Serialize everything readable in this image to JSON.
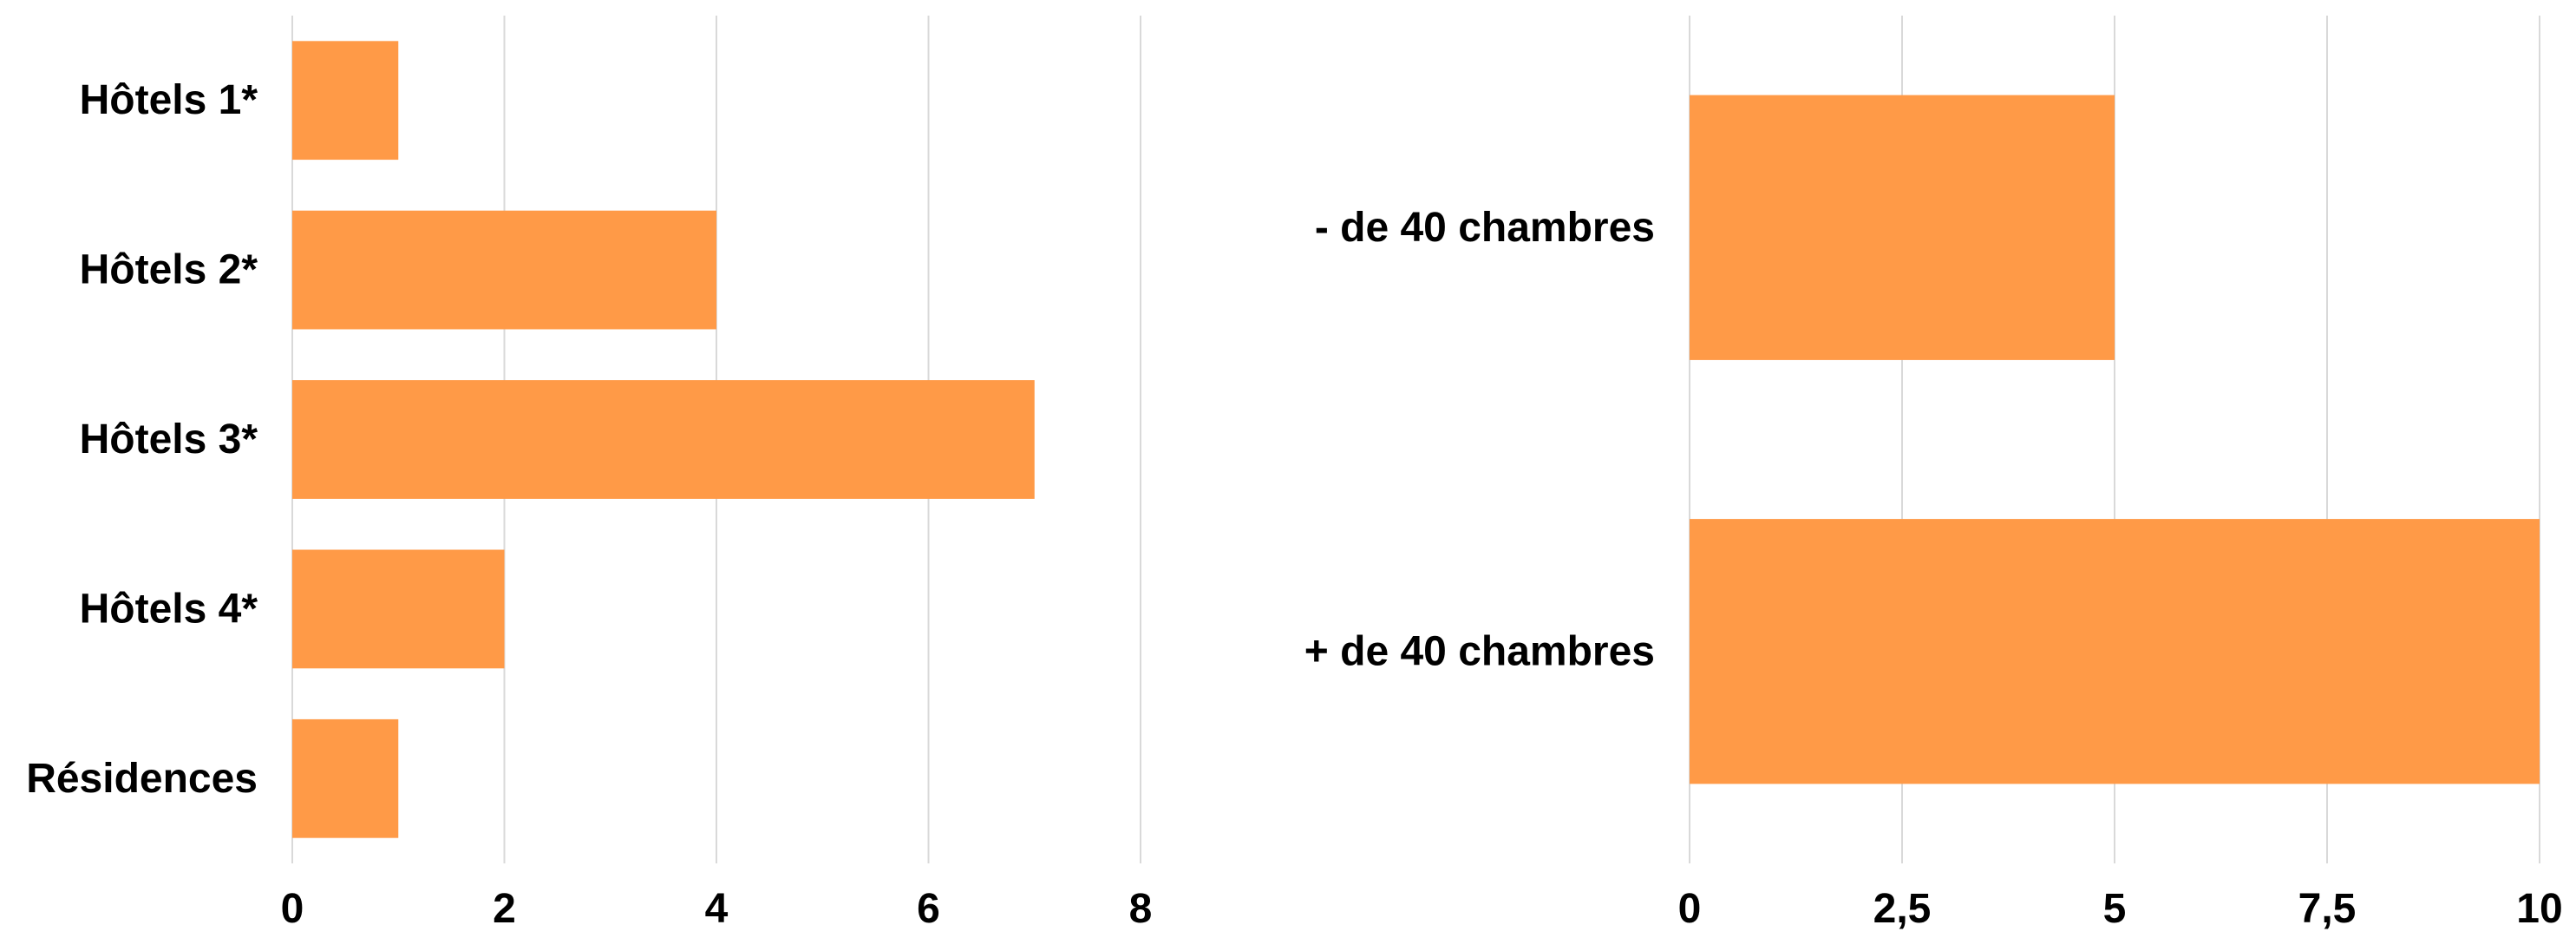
{
  "colors": {
    "bar": "#FF9A47",
    "grid": "#D9D9D9",
    "text": "#000000",
    "background": "#FFFFFF"
  },
  "chart_data": [
    {
      "type": "bar",
      "orientation": "horizontal",
      "categories": [
        "Hôtels 1*",
        "Hôtels 2*",
        "Hôtels 3*",
        "Hôtels 4*",
        "Résidences"
      ],
      "values": [
        1,
        4,
        7,
        2,
        1
      ],
      "xlim": [
        0,
        8
      ],
      "xticks": [
        0,
        2,
        4,
        6,
        8
      ],
      "xtick_labels": [
        "0",
        "2",
        "4",
        "6",
        "8"
      ],
      "grid": true,
      "legend": "none"
    },
    {
      "type": "bar",
      "orientation": "horizontal",
      "categories": [
        "- de 40 chambres",
        "+ de 40 chambres"
      ],
      "values": [
        5,
        10
      ],
      "xlim": [
        0,
        10
      ],
      "xticks": [
        0,
        2.5,
        5,
        7.5,
        10
      ],
      "xtick_labels": [
        "0",
        "2,5",
        "5",
        "7,5",
        "10"
      ],
      "grid": true,
      "legend": "none"
    }
  ]
}
